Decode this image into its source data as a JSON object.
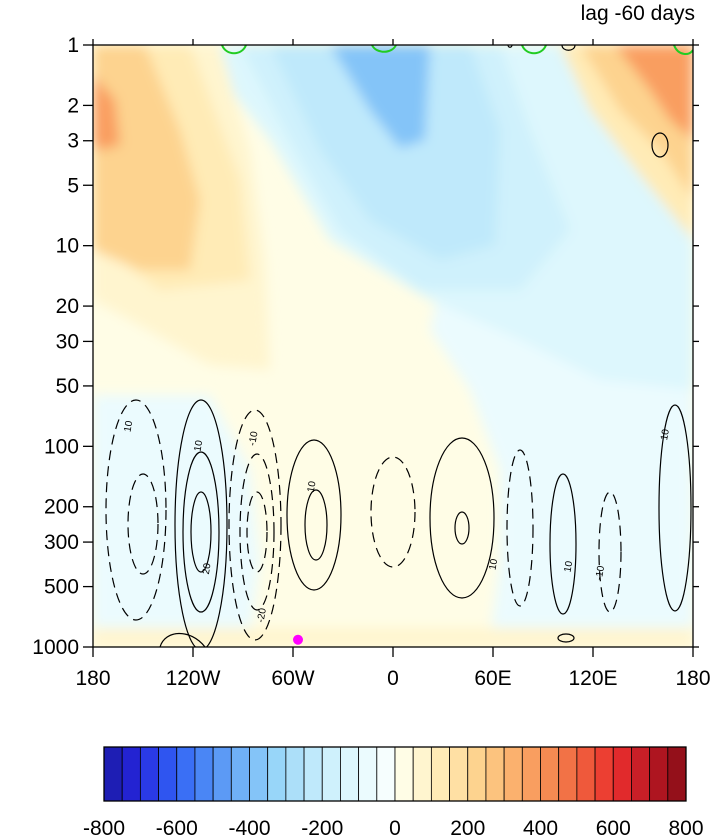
{
  "chart_data": {
    "type": "heatmap",
    "title": "lag -60 days",
    "x_axis": {
      "values": [
        -180,
        -120,
        -60,
        0,
        60,
        120,
        180
      ],
      "tick_labels": [
        "180",
        "120W",
        "60W",
        "0",
        "60E",
        "120E",
        "180"
      ],
      "range": [
        -180,
        180
      ]
    },
    "y_axis": {
      "scale": "log",
      "reversed": true,
      "range": [
        1000,
        1
      ],
      "values": [
        1,
        2,
        3,
        5,
        10,
        20,
        30,
        50,
        100,
        200,
        300,
        500,
        1000
      ],
      "tick_labels": [
        "1",
        "2",
        "3",
        "5",
        "10",
        "20",
        "30",
        "50",
        "100",
        "200",
        "300",
        "500",
        "1000"
      ]
    },
    "colorbar": {
      "levels": [
        -800,
        -750,
        -700,
        -650,
        -600,
        -550,
        -500,
        -450,
        -400,
        -350,
        -300,
        -250,
        -200,
        -150,
        -100,
        -50,
        0,
        50,
        100,
        150,
        200,
        250,
        300,
        350,
        400,
        450,
        500,
        550,
        600,
        650,
        700,
        750,
        800
      ],
      "tick_values": [
        -800,
        -600,
        -400,
        -200,
        0,
        200,
        400,
        600,
        800
      ],
      "tick_labels": [
        "-800",
        "-600",
        "-400",
        "-200",
        "0",
        "200",
        "400",
        "600",
        "800"
      ],
      "colors": [
        "#1e1eb4",
        "#2323d2",
        "#2a3ae6",
        "#2f55f0",
        "#3a6ff5",
        "#4a86f5",
        "#5c9af5",
        "#6fb0f7",
        "#84c4f8",
        "#98d6f9",
        "#acdff9",
        "#bfe9fb",
        "#cff1fc",
        "#ddf7fd",
        "#ebfbfe",
        "#f6fefe",
        "#fffde6",
        "#fff5cf",
        "#ffebb6",
        "#ffe0a4",
        "#fdd38f",
        "#fcc37e",
        "#fbb16e",
        "#f99e60",
        "#f58a52",
        "#f27246",
        "#ef593b",
        "#ec3f32",
        "#e12a2c",
        "#c81f27",
        "#ae1520",
        "#94101a"
      ]
    },
    "contour_labels": [
      {
        "text": "10",
        "x": -157,
        "p": 80
      },
      {
        "text": "10",
        "x": -115,
        "p": 100
      },
      {
        "text": "-10",
        "x": -82,
        "p": 92
      },
      {
        "text": "20",
        "x": -110,
        "p": 410
      },
      {
        "text": "-20",
        "x": -77,
        "p": 700
      },
      {
        "text": "10",
        "x": -47,
        "p": 160
      },
      {
        "text": "10",
        "x": 62,
        "p": 390
      },
      {
        "text": "10",
        "x": 107,
        "p": 400
      },
      {
        "text": "-10",
        "x": 126,
        "p": 430
      },
      {
        "text": "10",
        "x": 165,
        "p": 88
      }
    ],
    "marker": {
      "x": -57,
      "p": 920,
      "color": "#ff00ff"
    }
  }
}
